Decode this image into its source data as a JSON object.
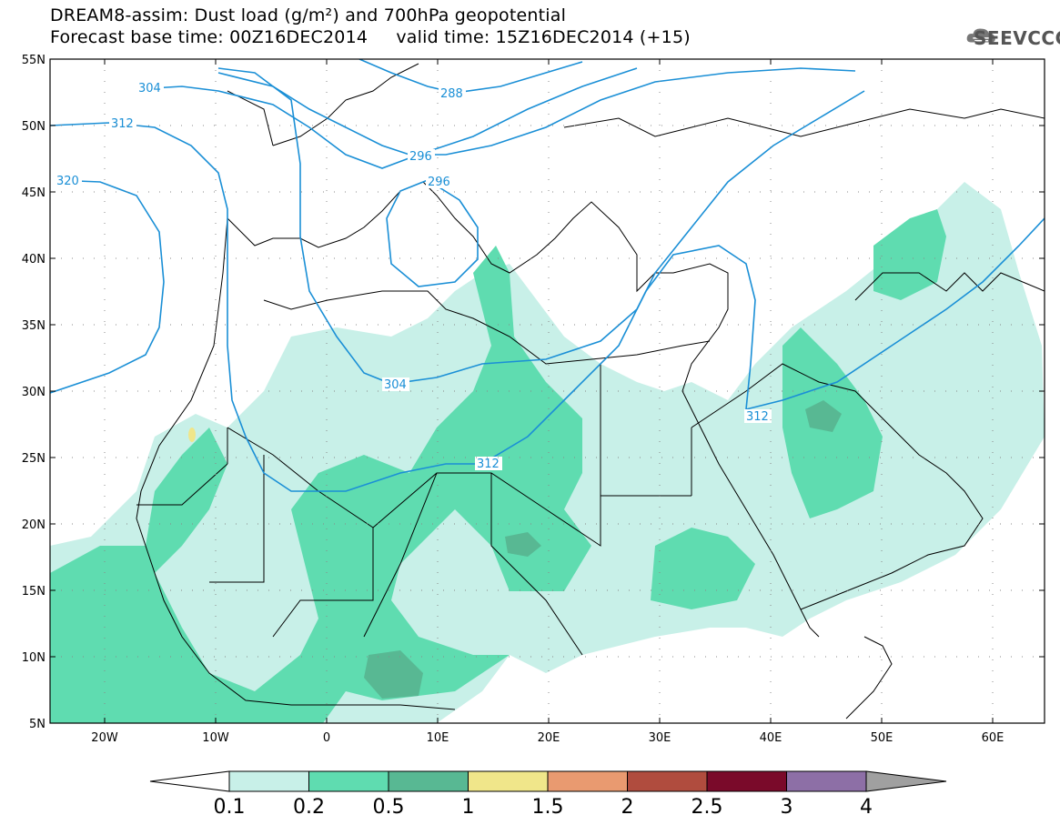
{
  "title": {
    "line1": "DREAM8-assim: Dust load (g/m²) and 700hPa geopotential",
    "line2": "Forecast base time: 00Z16DEC2014     valid time: 15Z16DEC2014 (+15)"
  },
  "logo": {
    "text": "SEEVCCC",
    "icon": "cloud-logo-icon"
  },
  "axes": {
    "lon_labels": [
      "20W",
      "10W",
      "0",
      "10E",
      "20E",
      "30E",
      "40E",
      "50E",
      "60E"
    ],
    "lat_labels": [
      "55N",
      "50N",
      "45N",
      "40N",
      "35N",
      "30N",
      "25N",
      "20N",
      "15N",
      "10N",
      "5N"
    ]
  },
  "contour_labels": [
    "304",
    "312",
    "320",
    "288",
    "296",
    "296",
    "304",
    "312",
    "312"
  ],
  "colorbar": {
    "labels": [
      "0.1",
      "0.2",
      "0.5",
      "1",
      "1.5",
      "2",
      "2.5",
      "3",
      "4"
    ],
    "colors": [
      "#ffffff",
      "#c8f0e8",
      "#5fdcb0",
      "#58b893",
      "#f0e68a",
      "#e99a70",
      "#b04c3e",
      "#7a0a2a",
      "#8d6fa6",
      "#a0a0a0"
    ]
  },
  "legend_colors": {
    "dust_low": "#c8f0e8",
    "dust_mid": "#5fdcb0",
    "dust_high": "#58b893",
    "dust_peak": "#f0e68a",
    "contour": "#1a8fd6"
  }
}
